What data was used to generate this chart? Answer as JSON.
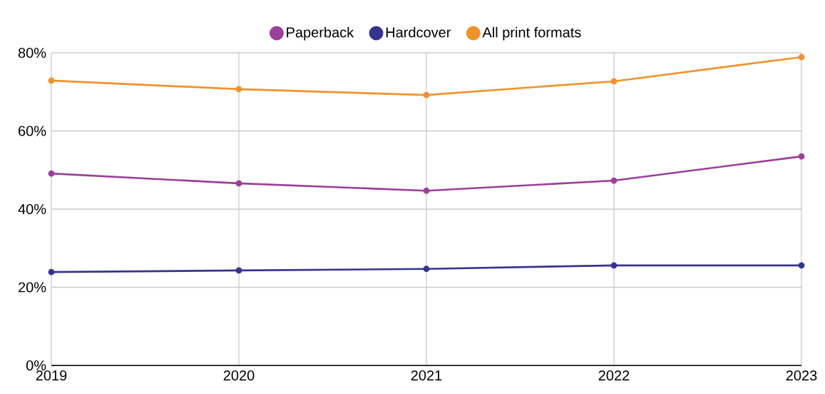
{
  "chart_data": {
    "type": "line",
    "x": [
      2019,
      2020,
      2021,
      2022,
      2023
    ],
    "xlim": [
      2019,
      2023
    ],
    "xticks": [
      2019,
      2020,
      2021,
      2022,
      2023
    ],
    "ylim": [
      0,
      80
    ],
    "yticks": [
      {
        "value": 0,
        "label": "0%"
      },
      {
        "value": 20,
        "label": "20%"
      },
      {
        "value": 40,
        "label": "40%"
      },
      {
        "value": 60,
        "label": "60%"
      },
      {
        "value": 80,
        "label": "80%"
      }
    ],
    "grid": true,
    "legend": "top",
    "marker": "circle",
    "line_style": "solid",
    "series": [
      {
        "name": "Paperback",
        "color": "#9b3f98",
        "values": [
          49.1,
          46.6,
          44.7,
          47.3,
          53.5
        ]
      },
      {
        "name": "Hardcover",
        "color": "#35348f",
        "values": [
          23.9,
          24.3,
          24.7,
          25.6,
          25.6
        ]
      },
      {
        "name": "All print formats",
        "color": "#f0922b",
        "values": [
          72.9,
          70.7,
          69.2,
          72.7,
          78.9
        ]
      }
    ]
  }
}
